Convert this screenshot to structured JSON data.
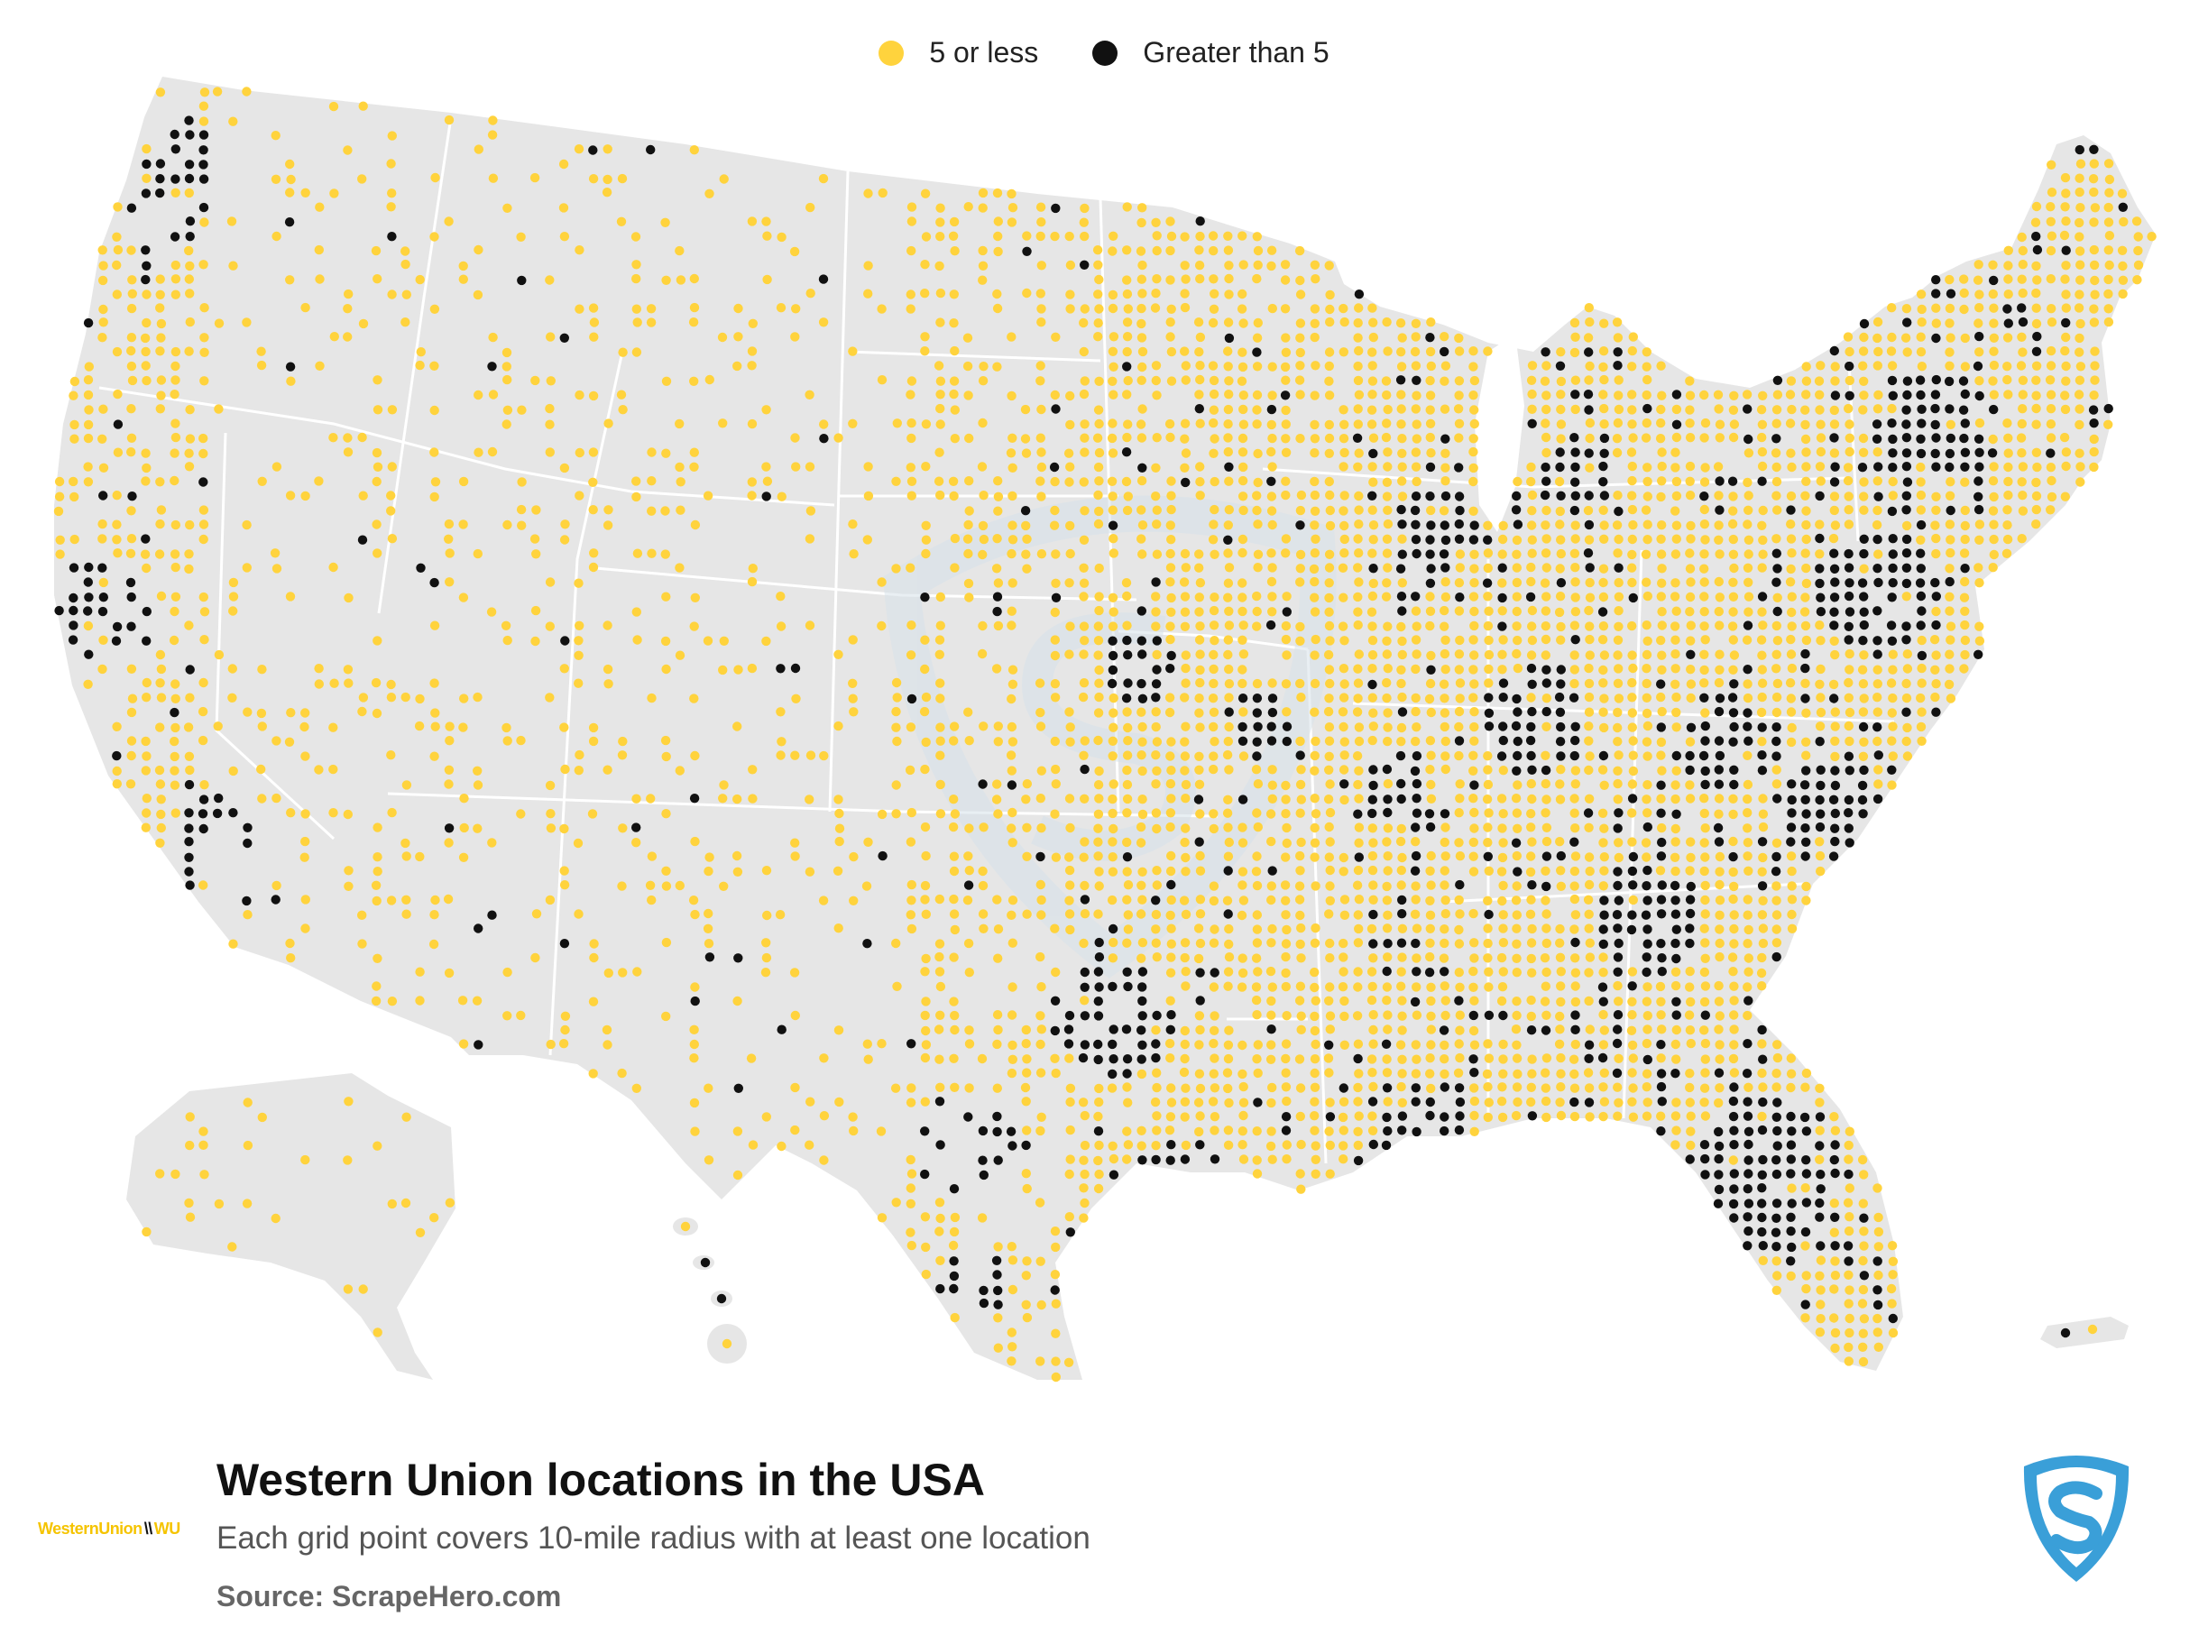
{
  "legend": {
    "items": [
      {
        "label": "5 or less",
        "color": "#ffd33d"
      },
      {
        "label": "Greater than 5",
        "color": "#111111"
      }
    ]
  },
  "footer": {
    "title": "Western Union locations in the USA",
    "subtitle": "Each grid point covers 10-mile radius with at least one location",
    "source": "Source: ScrapeHero.com",
    "brand_logo_text": "WesternUnion",
    "brand_logo_suffix": "WU"
  },
  "colors": {
    "land": "#e6e6e6",
    "border": "#ffffff",
    "low": "#ffd33d",
    "high": "#111111",
    "watermark": "#d7e2ea",
    "scrapehero_blue": "#3a9fd8"
  },
  "icons": {
    "brand": "western-union-logo",
    "publisher": "scrapehero-shield-logo",
    "watermark": "scrapehero-shield-watermark"
  }
}
